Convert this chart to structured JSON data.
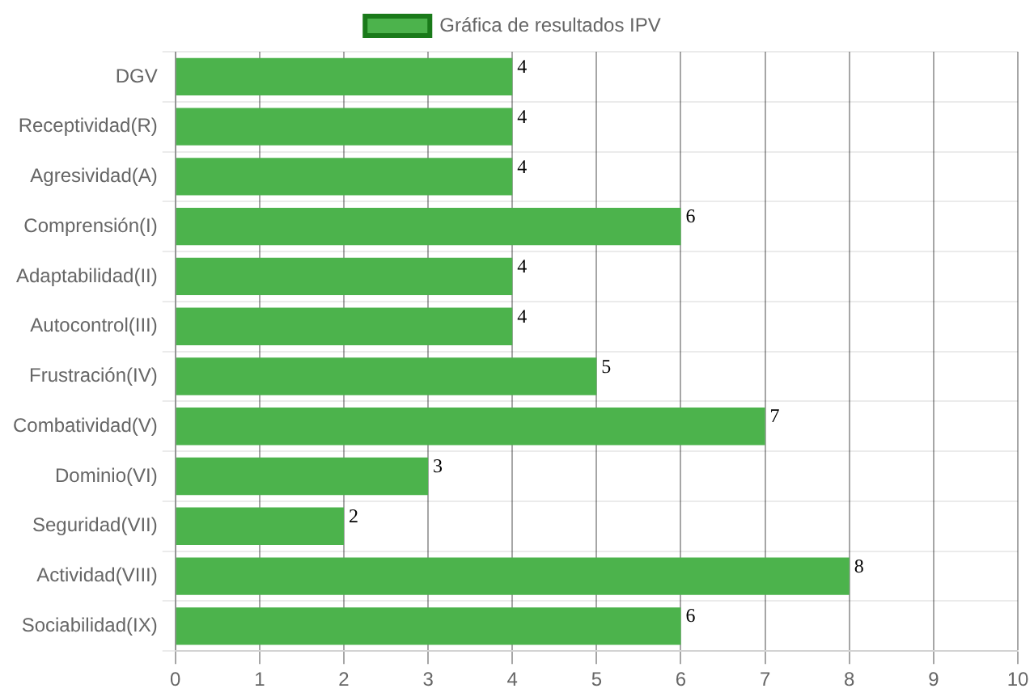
{
  "chart_data": {
    "type": "bar",
    "orientation": "horizontal",
    "categories": [
      "DGV",
      "Receptividad(R)",
      "Agresividad(A)",
      "Comprensión(I)",
      "Adaptabilidad(II)",
      "Autocontrol(III)",
      "Frustración(IV)",
      "Combatividad(V)",
      "Dominio(VI)",
      "Seguridad(VII)",
      "Actividad(VIII)",
      "Sociabilidad(IX)"
    ],
    "series": [
      {
        "name": "Gráfica de resultados IPV",
        "color": "#4cb34c",
        "values": [
          4,
          4,
          4,
          6,
          4,
          4,
          5,
          7,
          3,
          2,
          8,
          6
        ]
      }
    ],
    "xlim": [
      0,
      10
    ],
    "xticks": [
      0,
      1,
      2,
      3,
      4,
      5,
      6,
      7,
      8,
      9,
      10
    ],
    "grid": true,
    "legend": "top",
    "data_labels": true
  }
}
